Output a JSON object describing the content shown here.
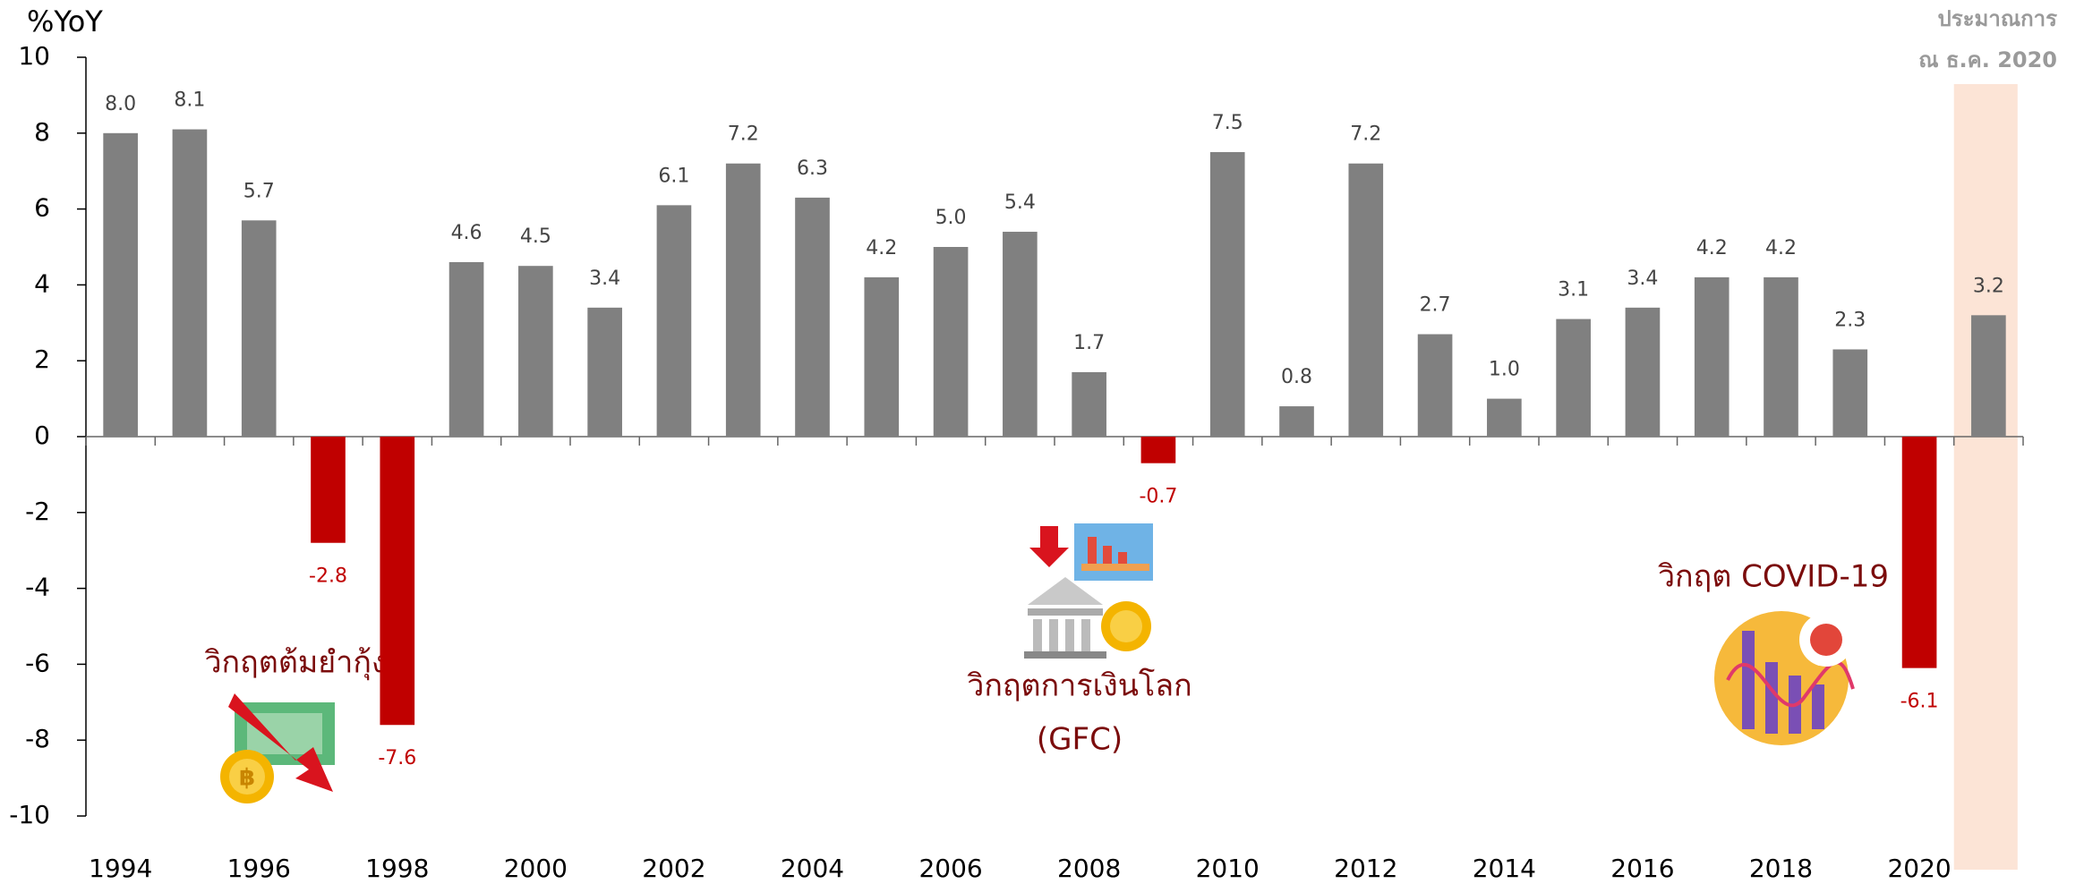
{
  "chart_data": {
    "type": "bar",
    "y_label": "%YoY",
    "categories": [
      "1994",
      null,
      "1996",
      null,
      "1998",
      null,
      "2000",
      null,
      "2002",
      null,
      "2004",
      null,
      "2006",
      null,
      "2008",
      null,
      "2010",
      null,
      "2012",
      null,
      "2014",
      null,
      "2016",
      null,
      "2018",
      null,
      "2020",
      null
    ],
    "values": [
      8.0,
      8.1,
      5.7,
      -2.8,
      -7.6,
      4.6,
      4.5,
      3.4,
      6.1,
      7.2,
      6.3,
      4.2,
      5.0,
      5.4,
      1.7,
      -0.7,
      7.5,
      0.8,
      7.2,
      2.7,
      1.0,
      3.1,
      3.4,
      4.2,
      4.2,
      2.3,
      -6.1,
      3.2
    ],
    "value_labels": [
      "8.0",
      "8.1",
      "5.7",
      "-2.8",
      "-7.6",
      "4.6",
      "4.5",
      "3.4",
      "6.1",
      "7.2",
      "6.3",
      "4.2",
      "5.0",
      "5.4",
      "1.7",
      "-0.7",
      "7.5",
      "0.8",
      "7.2",
      "2.7",
      "1.0",
      "3.1",
      "3.4",
      "4.2",
      "4.2",
      "2.3",
      "-6.1",
      "3.2"
    ],
    "color": "#808080",
    "negative_color": "#c00000",
    "ylim": [
      -10,
      10
    ],
    "yticks": [
      -10,
      -8,
      -6,
      -4,
      -2,
      0,
      2,
      4,
      6,
      8,
      10
    ],
    "highlight": {
      "index": 27,
      "color": "#fce4d6",
      "label_lines": [
        "ประมาณการ",
        "ณ ธ.ค. 2020"
      ]
    },
    "annotations": [
      "วิกฤตต้มยำกุ้ง",
      "วิกฤตการเงินโลก",
      "(GFC)",
      "วิกฤต COVID-19"
    ]
  }
}
